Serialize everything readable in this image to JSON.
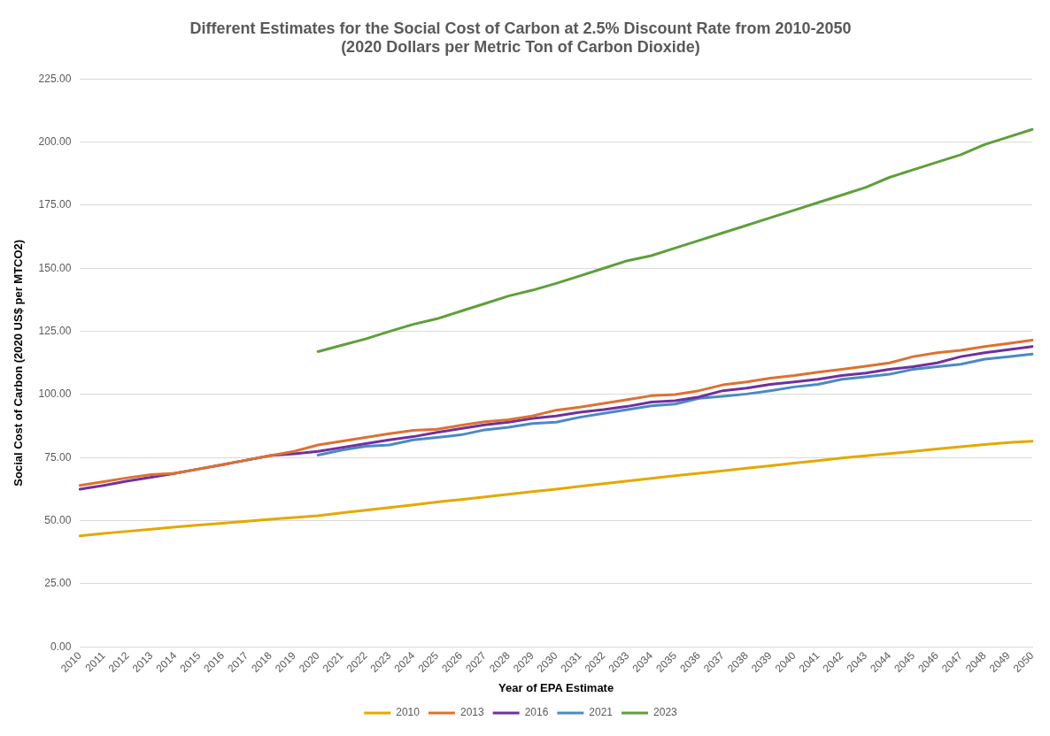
{
  "chart_data": {
    "type": "line",
    "title": [
      "Different Estimates for the Social Cost of Carbon at 2.5% Discount Rate from 2010-2050",
      "(2020 Dollars per Metric Ton of Carbon Dioxide)"
    ],
    "xlabel": "Year of EPA Estimate",
    "ylabel": "Social Cost of Carbon (2020 US$ per MTCO2)",
    "categories": [
      "2010",
      "2011",
      "2012",
      "2013",
      "2014",
      "2015",
      "2016",
      "2017",
      "2018",
      "2019",
      "2020",
      "2021",
      "2022",
      "2023",
      "2024",
      "2025",
      "2026",
      "2027",
      "2028",
      "2029",
      "2030",
      "2031",
      "2032",
      "2033",
      "2034",
      "2035",
      "2036",
      "2037",
      "2038",
      "2039",
      "2040",
      "2041",
      "2042",
      "2043",
      "2044",
      "2045",
      "2046",
      "2047",
      "2048",
      "2049",
      "2050"
    ],
    "series": [
      {
        "name": "2010",
        "color": "#e5a800",
        "values": [
          44.0,
          45.0,
          45.8,
          46.6,
          47.5,
          48.3,
          49.0,
          49.8,
          50.6,
          51.3,
          52.0,
          53.1,
          54.2,
          55.2,
          56.3,
          57.4,
          58.4,
          59.4,
          60.5,
          61.5,
          62.5,
          63.6,
          64.7,
          65.7,
          66.8,
          67.8,
          68.8,
          69.8,
          70.8,
          71.8,
          72.8,
          73.8,
          74.8,
          75.7,
          76.6,
          77.5,
          78.4,
          79.3,
          80.2,
          81.0,
          81.5
        ]
      },
      {
        "name": "2013",
        "color": "#dd7130",
        "values": [
          64.0,
          65.5,
          67.0,
          68.3,
          68.8,
          70.5,
          72.2,
          74.0,
          75.8,
          77.5,
          80.0,
          81.5,
          83.0,
          84.5,
          85.8,
          86.2,
          87.8,
          89.2,
          90.0,
          91.5,
          93.8,
          95.0,
          96.5,
          98.0,
          99.5,
          100.0,
          101.5,
          103.8,
          105.0,
          106.5,
          107.5,
          108.8,
          110.0,
          111.2,
          112.5,
          115.0,
          116.5,
          117.5,
          119.0,
          120.2,
          121.5
        ]
      },
      {
        "name": "2016",
        "color": "#7030a0",
        "values": [
          62.5,
          64.0,
          65.7,
          67.2,
          68.8,
          70.5,
          72.2,
          74.0,
          75.8,
          76.5,
          77.5,
          79.0,
          80.5,
          82.0,
          83.3,
          85.0,
          86.5,
          88.0,
          89.0,
          90.5,
          91.5,
          93.0,
          94.0,
          95.3,
          97.0,
          97.5,
          99.0,
          101.5,
          102.5,
          104.0,
          105.0,
          106.0,
          107.5,
          108.5,
          110.0,
          111.0,
          112.5,
          115.0,
          116.5,
          117.8,
          119.0
        ]
      },
      {
        "name": "2021",
        "color": "#4a8ac4",
        "values": [
          null,
          null,
          null,
          null,
          null,
          null,
          null,
          null,
          null,
          null,
          76.0,
          78.0,
          79.5,
          80.0,
          82.0,
          83.0,
          84.0,
          86.0,
          87.0,
          88.5,
          89.0,
          91.0,
          92.5,
          94.0,
          95.5,
          96.2,
          98.5,
          99.3,
          100.2,
          101.5,
          103.0,
          104.0,
          106.0,
          107.0,
          108.0,
          110.0,
          111.0,
          112.0,
          114.0,
          115.0,
          116.0
        ]
      },
      {
        "name": "2023",
        "color": "#5e9f3a",
        "values": [
          null,
          null,
          null,
          null,
          null,
          null,
          null,
          null,
          null,
          null,
          117.0,
          119.5,
          122.0,
          125.0,
          127.8,
          130.0,
          133.0,
          136.0,
          139.0,
          141.3,
          144.0,
          147.0,
          150.0,
          153.0,
          155.0,
          158.0,
          161.0,
          164.0,
          167.0,
          170.0,
          173.0,
          176.0,
          179.0,
          182.0,
          186.0,
          189.0,
          192.0,
          195.0,
          199.0,
          202.0,
          205.0
        ]
      }
    ],
    "ylim": [
      0,
      225
    ],
    "yticks": [
      {
        "value": 0,
        "label": "0.00"
      },
      {
        "value": 25,
        "label": "25.00"
      },
      {
        "value": 50,
        "label": "50.00"
      },
      {
        "value": 75,
        "label": "75.00"
      },
      {
        "value": 100,
        "label": "100.00"
      },
      {
        "value": 125,
        "label": "125.00"
      },
      {
        "value": 150,
        "label": "150.00"
      },
      {
        "value": 175,
        "label": "175.00"
      },
      {
        "value": 200,
        "label": "200.00"
      },
      {
        "value": 225,
        "label": "225.00"
      }
    ],
    "grid": "y",
    "legend": "bottom",
    "marker": "none",
    "line_style": "solid"
  }
}
